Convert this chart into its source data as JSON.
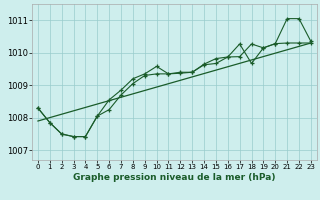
{
  "title": "Graphe pression niveau de la mer (hPa)",
  "bg_color": "#ceeeed",
  "grid_color": "#99cccc",
  "line_color": "#1a5c2a",
  "xlim": [
    -0.5,
    23.5
  ],
  "ylim": [
    1006.7,
    1011.5
  ],
  "yticks": [
    1007,
    1008,
    1009,
    1010,
    1011
  ],
  "xticks": [
    0,
    1,
    2,
    3,
    4,
    5,
    6,
    7,
    8,
    9,
    10,
    11,
    12,
    13,
    14,
    15,
    16,
    17,
    18,
    19,
    20,
    21,
    22,
    23
  ],
  "series1_x": [
    0,
    1,
    2,
    3,
    4,
    5,
    6,
    7,
    8,
    9,
    10,
    11,
    12,
    13,
    14,
    15,
    16,
    17,
    18,
    19,
    20,
    21,
    22,
    23
  ],
  "series1_y": [
    1008.3,
    1007.85,
    1007.5,
    1007.42,
    1007.42,
    1008.05,
    1008.55,
    1008.85,
    1009.2,
    1009.35,
    1009.58,
    1009.35,
    1009.4,
    1009.4,
    1009.65,
    1009.82,
    1009.87,
    1009.88,
    1010.27,
    1010.15,
    1010.28,
    1011.05,
    1011.05,
    1010.35
  ],
  "series2_x": [
    0,
    1,
    2,
    3,
    4,
    5,
    6,
    7,
    8,
    9,
    10,
    11,
    12,
    13,
    14,
    15,
    16,
    17,
    18,
    19,
    20,
    21,
    22,
    23
  ],
  "series2_y": [
    1008.3,
    1007.85,
    1007.5,
    1007.42,
    1007.42,
    1008.05,
    1008.25,
    1008.7,
    1009.05,
    1009.3,
    1009.35,
    1009.35,
    1009.37,
    1009.4,
    1009.63,
    1009.67,
    1009.87,
    1010.27,
    1009.67,
    1010.15,
    1010.28,
    1010.3,
    1010.3,
    1010.3
  ],
  "trend_x": [
    0,
    23
  ],
  "trend_y": [
    1007.9,
    1010.3
  ]
}
